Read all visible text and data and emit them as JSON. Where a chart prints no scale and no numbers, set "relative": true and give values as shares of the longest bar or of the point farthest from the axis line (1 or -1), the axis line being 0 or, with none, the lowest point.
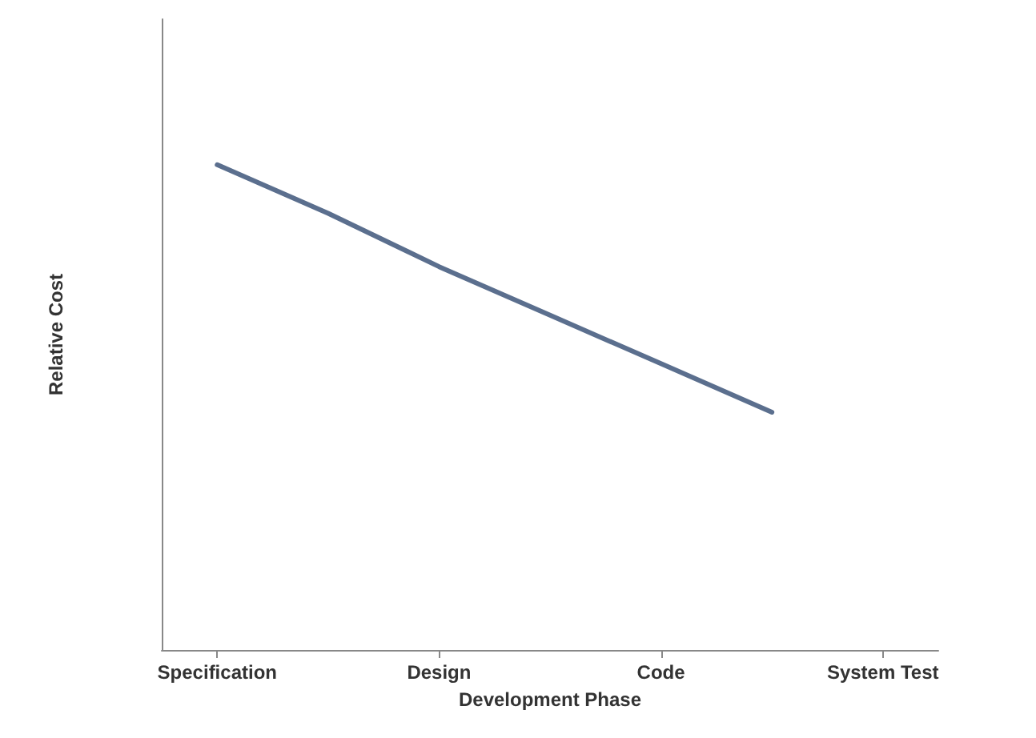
{
  "chart_data": {
    "type": "line",
    "xlabel": "Development Phase",
    "ylabel": "Relative Cost",
    "relative": true,
    "categories": [
      "Specification",
      null,
      "Design",
      null,
      "Code",
      null,
      "System Test"
    ],
    "series": [
      {
        "color": "#5b6f8e",
        "values": [
          1,
          0.9,
          0.79,
          0.69,
          0.59,
          0.49,
          null
        ]
      }
    ],
    "marker": "none",
    "line_style": "solid"
  }
}
